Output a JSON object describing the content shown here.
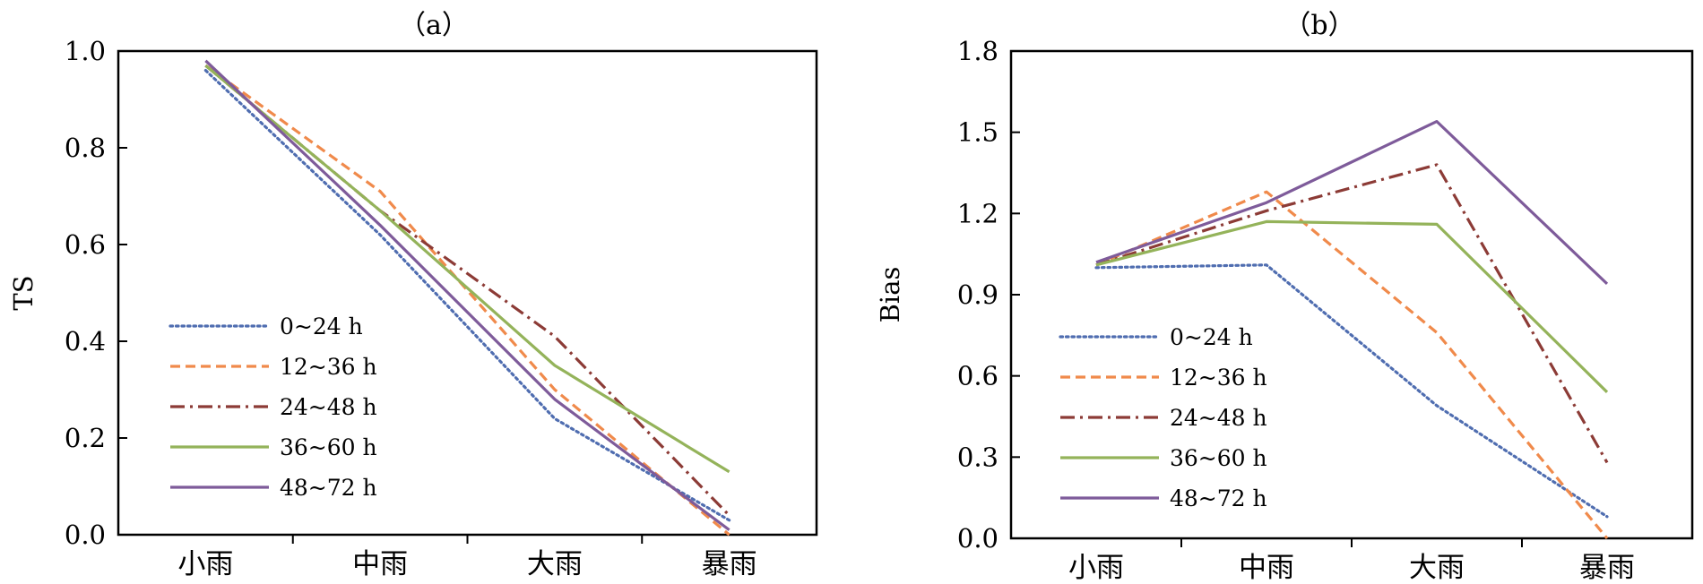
{
  "chart_data": [
    {
      "type": "line",
      "title": "（a）",
      "xlabel": "",
      "ylabel": "TS",
      "categories": [
        "小雨",
        "中雨",
        "大雨",
        "暴雨"
      ],
      "ylim": [
        0.0,
        1.0
      ],
      "yticks": [
        "0.0",
        "0.2",
        "0.4",
        "0.6",
        "0.8",
        "1.0"
      ],
      "legend_position": "lower-left",
      "grid": false,
      "series": [
        {
          "name": "0~24 h",
          "values": [
            0.96,
            0.62,
            0.24,
            0.03
          ],
          "color": "#4F6DB0",
          "dash": "dotted"
        },
        {
          "name": "12~36 h",
          "values": [
            0.97,
            0.71,
            0.3,
            0.0
          ],
          "color": "#F08A4B",
          "dash": "dashed"
        },
        {
          "name": "24~48 h",
          "values": [
            0.97,
            0.67,
            0.41,
            0.04
          ],
          "color": "#8C3B36",
          "dash": "dashdot"
        },
        {
          "name": "36~60 h",
          "values": [
            0.97,
            0.67,
            0.35,
            0.13
          ],
          "color": "#94B35A",
          "dash": "solid"
        },
        {
          "name": "48~72 h",
          "values": [
            0.98,
            0.64,
            0.28,
            0.01
          ],
          "color": "#7E5B9A",
          "dash": "solid"
        }
      ]
    },
    {
      "type": "line",
      "title": "（b）",
      "xlabel": "",
      "ylabel": "Bias",
      "categories": [
        "小雨",
        "中雨",
        "大雨",
        "暴雨"
      ],
      "ylim": [
        0.0,
        1.8
      ],
      "yticks": [
        "0.0",
        "0.3",
        "0.6",
        "0.9",
        "1.2",
        "1.5",
        "1.8"
      ],
      "legend_position": "lower-left",
      "grid": false,
      "series": [
        {
          "name": "0~24 h",
          "values": [
            1.0,
            1.01,
            0.49,
            0.08
          ],
          "color": "#4F6DB0",
          "dash": "dotted"
        },
        {
          "name": "12~36 h",
          "values": [
            1.01,
            1.28,
            0.76,
            0.0
          ],
          "color": "#F08A4B",
          "dash": "dashed"
        },
        {
          "name": "24~48 h",
          "values": [
            1.01,
            1.21,
            1.38,
            0.28
          ],
          "color": "#8C3B36",
          "dash": "dashdot"
        },
        {
          "name": "36~60 h",
          "values": [
            1.01,
            1.17,
            1.16,
            0.54
          ],
          "color": "#94B35A",
          "dash": "solid"
        },
        {
          "name": "48~72 h",
          "values": [
            1.02,
            1.24,
            1.54,
            0.94
          ],
          "color": "#7E5B9A",
          "dash": "solid"
        }
      ]
    }
  ]
}
